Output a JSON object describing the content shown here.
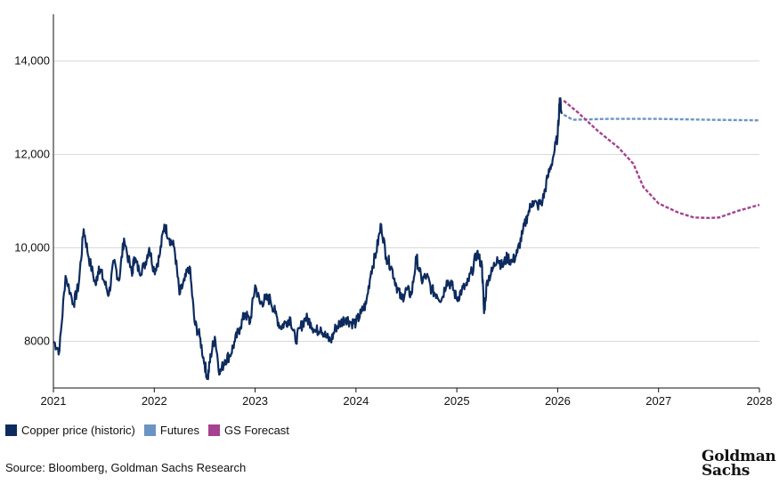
{
  "chart_data": {
    "type": "line",
    "title": "",
    "xlabel": "",
    "ylabel": "",
    "xlim": [
      2021,
      2028
    ],
    "ylim": [
      7000,
      15000
    ],
    "x_ticks": [
      "2021",
      "2022",
      "2023",
      "2024",
      "2025",
      "2026",
      "2027",
      "2028"
    ],
    "y_ticks": [
      {
        "value": 8000,
        "label": "8000"
      },
      {
        "value": 10000,
        "label": "10,000"
      },
      {
        "value": 12000,
        "label": "12,000"
      },
      {
        "value": 14000,
        "label": "14,000"
      }
    ],
    "grid": true,
    "legend_position": "bottom-left",
    "series": [
      {
        "name": "Copper price (historic)",
        "color": "#0d2b5e",
        "style": "solid",
        "x": [
          2021.0,
          2021.06,
          2021.12,
          2021.2,
          2021.25,
          2021.3,
          2021.35,
          2021.42,
          2021.45,
          2021.5,
          2021.55,
          2021.6,
          2021.65,
          2021.7,
          2021.78,
          2021.8,
          2021.85,
          2021.9,
          2021.95,
          2022.0,
          2022.05,
          2022.1,
          2022.15,
          2022.2,
          2022.25,
          2022.3,
          2022.35,
          2022.4,
          2022.45,
          2022.5,
          2022.53,
          2022.56,
          2022.6,
          2022.65,
          2022.7,
          2022.75,
          2022.8,
          2022.85,
          2022.9,
          2022.95,
          2023.0,
          2023.05,
          2023.1,
          2023.15,
          2023.2,
          2023.25,
          2023.3,
          2023.35,
          2023.4,
          2023.45,
          2023.5,
          2023.55,
          2023.6,
          2023.65,
          2023.7,
          2023.75,
          2023.8,
          2023.85,
          2023.9,
          2023.95,
          2024.0,
          2024.05,
          2024.1,
          2024.15,
          2024.2,
          2024.25,
          2024.3,
          2024.35,
          2024.4,
          2024.45,
          2024.5,
          2024.55,
          2024.6,
          2024.65,
          2024.7,
          2024.75,
          2024.8,
          2024.85,
          2024.9,
          2024.95,
          2025.0,
          2025.05,
          2025.1,
          2025.15,
          2025.2,
          2025.25,
          2025.27,
          2025.3,
          2025.35,
          2025.4,
          2025.45,
          2025.5,
          2025.55,
          2025.6,
          2025.65,
          2025.7,
          2025.75,
          2025.8,
          2025.85,
          2025.9,
          2025.95,
          2026.0,
          2026.02,
          2026.04
        ],
        "values": [
          8000,
          7800,
          9400,
          8800,
          9200,
          10400,
          9800,
          9200,
          9600,
          9300,
          9000,
          9700,
          9300,
          10200,
          9400,
          9800,
          9500,
          9600,
          10000,
          9500,
          9800,
          10500,
          10200,
          10000,
          9000,
          9300,
          9600,
          8400,
          8100,
          7500,
          7200,
          7700,
          8100,
          7300,
          7600,
          7700,
          8000,
          8300,
          8600,
          8400,
          9200,
          8800,
          8900,
          8900,
          8600,
          8300,
          8400,
          8500,
          8000,
          8300,
          8500,
          8400,
          8200,
          8300,
          8100,
          8000,
          8300,
          8400,
          8500,
          8400,
          8400,
          8600,
          8800,
          9500,
          9900,
          10500,
          9800,
          9600,
          9200,
          8900,
          9100,
          9000,
          9800,
          9300,
          9400,
          9100,
          9000,
          8900,
          9300,
          9200,
          8900,
          9100,
          9200,
          9500,
          9900,
          9600,
          8600,
          9300,
          9500,
          9800,
          9600,
          9800,
          9700,
          9900,
          10300,
          10700,
          11000,
          10900,
          11000,
          11500,
          11900,
          12400,
          13200,
          12900
        ]
      },
      {
        "name": "Futures",
        "color": "#6b94c4",
        "style": "dashed",
        "x": [
          2026.06,
          2026.15,
          2026.5,
          2027.0,
          2027.5,
          2028.0
        ],
        "values": [
          12850,
          12740,
          12760,
          12760,
          12740,
          12730
        ]
      },
      {
        "name": "GS Forecast",
        "color": "#a6428f",
        "style": "dashed",
        "x": [
          2026.06,
          2026.2,
          2026.4,
          2026.6,
          2026.75,
          2026.85,
          2027.0,
          2027.2,
          2027.35,
          2027.5,
          2027.6,
          2027.8,
          2028.0
        ],
        "values": [
          13150,
          12900,
          12500,
          12150,
          11800,
          11300,
          10950,
          10750,
          10650,
          10640,
          10650,
          10800,
          10920
        ]
      }
    ]
  },
  "legend": {
    "items": [
      {
        "label": "Copper price (historic)",
        "color": "#0d2b5e"
      },
      {
        "label": "Futures",
        "color": "#6b94c4"
      },
      {
        "label": "GS Forecast",
        "color": "#a6428f"
      }
    ]
  },
  "footer": {
    "source": "Source: Bloomberg, Goldman Sachs Research",
    "logo_line1": "Goldman",
    "logo_line2": "Sachs"
  }
}
